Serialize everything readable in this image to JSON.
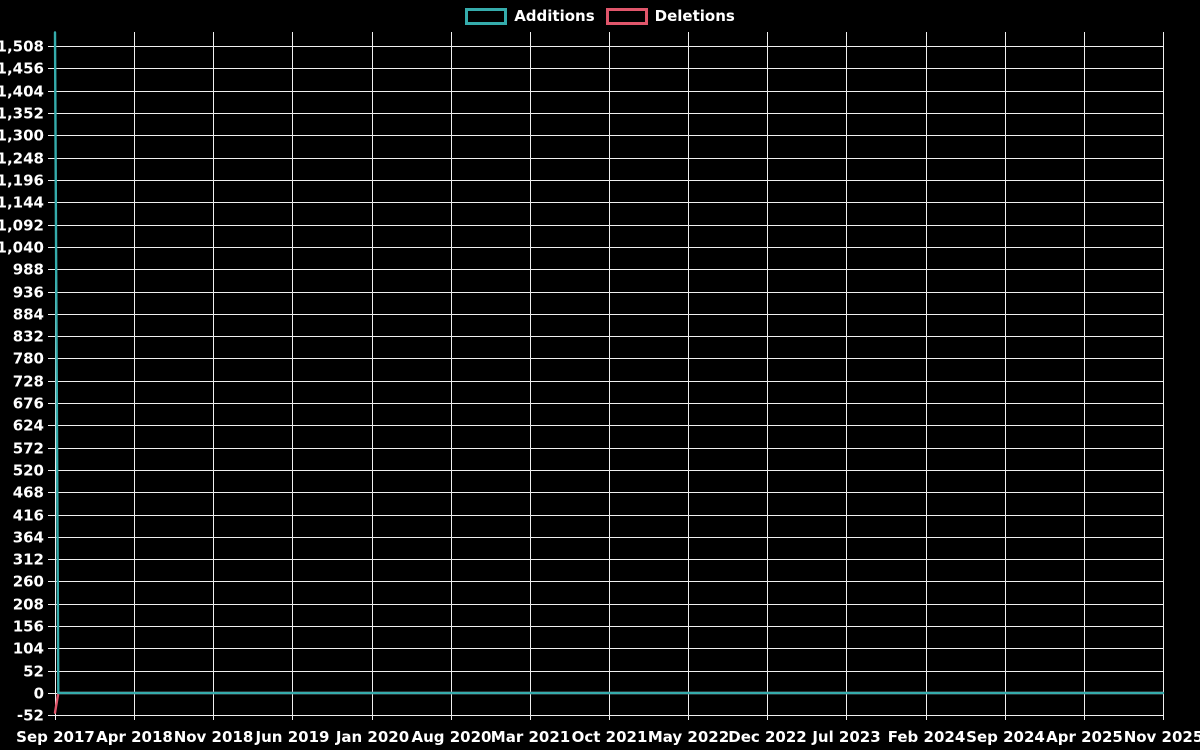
{
  "page": {
    "background": "#000000",
    "text_color": "#FFFFFF"
  },
  "legend": {
    "position": "top-center",
    "items": [
      {
        "label": "Additions",
        "color": "#35ACAC"
      },
      {
        "label": "Deletions",
        "color": "#E0566B"
      }
    ]
  },
  "chart_data": {
    "type": "line",
    "title": "",
    "subtitle": "",
    "xlabel": "",
    "ylabel": "",
    "grid": true,
    "grid_color": "#F0F0F0",
    "text_color": "#FFFFFF",
    "background": "#000000",
    "legend_position": "top-center",
    "legend_entries": [
      "Additions",
      "Deletions"
    ],
    "x_tick_labels": [
      "Sep 2017",
      "Apr 2018",
      "Nov 2018",
      "Jun 2019",
      "Jan 2020",
      "Aug 2020",
      "Mar 2021",
      "Oct 2021",
      "May 2022",
      "Dec 2022",
      "Jul 2023",
      "Feb 2024",
      "Sep 2024",
      "Apr 2025",
      "Nov 2025"
    ],
    "x_tick_interval_months": 7,
    "y_ticks": [
      1508,
      1456,
      1404,
      1352,
      1300,
      1248,
      1196,
      1144,
      1092,
      1040,
      988,
      936,
      884,
      832,
      780,
      728,
      676,
      624,
      572,
      520,
      468,
      416,
      364,
      312,
      260,
      208,
      156,
      104,
      52,
      0,
      -52
    ],
    "y_tick_interval": 52,
    "ylim": [
      -52,
      1541
    ],
    "series": [
      {
        "name": "Additions",
        "color": "#35ACAC",
        "shape": "single spike at first week, zero for all later weeks (values estimated from gridlines)",
        "points": [
          {
            "x": "Sep 2017",
            "value": 1540,
            "f": 0
          },
          {
            "x": "late Sep 2017",
            "value": 0,
            "f": 0.003
          },
          {
            "x": "Nov 2025",
            "value": 0,
            "f": 1
          }
        ]
      },
      {
        "name": "Deletions",
        "color": "#E0566B",
        "shape": "single negative spike at first week, zero for all later weeks (values estimated from gridlines)",
        "points": [
          {
            "x": "Sep 2017",
            "value": -46,
            "f": 0
          },
          {
            "x": "late Sep 2017",
            "value": 0,
            "f": 0.003
          },
          {
            "x": "Nov 2025",
            "value": 0,
            "f": 1
          }
        ]
      }
    ]
  }
}
